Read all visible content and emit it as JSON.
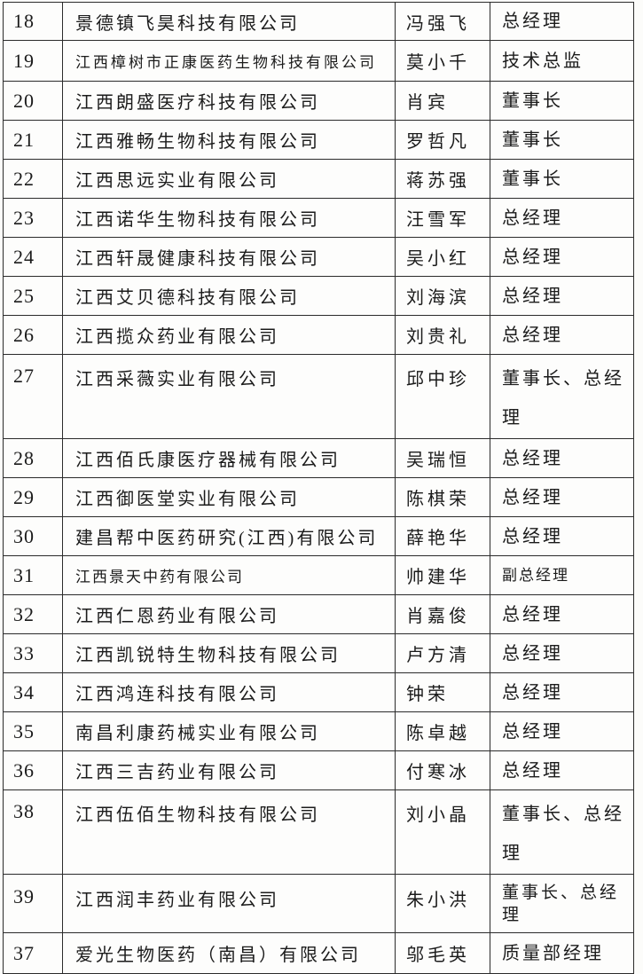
{
  "colors": {
    "paper": "#fdfdfc",
    "ink": "#1b1b1b",
    "grid_line": "#2b2b2b"
  },
  "table": {
    "rows": [
      {
        "num": "18",
        "company": "景德镇飞昊科技有限公司",
        "person": "冯强飞",
        "title": "总经理"
      },
      {
        "num": "19",
        "company": "江西樟树市正康医药生物科技有限公司",
        "person": "莫小千",
        "title": "技术总监"
      },
      {
        "num": "20",
        "company": "江西朗盛医疗科技有限公司",
        "person": "肖宾",
        "title": "董事长"
      },
      {
        "num": "21",
        "company": "江西雅畅生物科技有限公司",
        "person": "罗哲凡",
        "title": "董事长"
      },
      {
        "num": "22",
        "company": "江西思远实业有限公司",
        "person": "蒋苏强",
        "title": "董事长"
      },
      {
        "num": "23",
        "company": "江西诺华生物科技有限公司",
        "person": "汪雪军",
        "title": "总经理"
      },
      {
        "num": "24",
        "company": "江西轩晟健康科技有限公司",
        "person": "吴小红",
        "title": "总经理"
      },
      {
        "num": "25",
        "company": "江西艾贝德科技有限公司",
        "person": "刘海滨",
        "title": "总经理"
      },
      {
        "num": "26",
        "company": "江西揽众药业有限公司",
        "person": "刘贵礼",
        "title": "总经理"
      },
      {
        "num": "27",
        "company": "江西采薇实业有限公司",
        "person": "邱中珍",
        "title": "董事长、总经理"
      },
      {
        "num": "28",
        "company": "江西佰氏康医疗器械有限公司",
        "person": "吴瑞恒",
        "title": "总经理"
      },
      {
        "num": "29",
        "company": "江西御医堂实业有限公司",
        "person": "陈棋荣",
        "title": "总经理"
      },
      {
        "num": "30",
        "company": "建昌帮中医药研究(江西)有限公司",
        "person": "薛艳华",
        "title": "总经理"
      },
      {
        "num": "31",
        "company": "江西景天中药有限公司",
        "person": "帅建华",
        "title": "副总经理"
      },
      {
        "num": "32",
        "company": "江西仁恩药业有限公司",
        "person": "肖嘉俊",
        "title": "总经理"
      },
      {
        "num": "33",
        "company": "江西凯锐特生物科技有限公司",
        "person": "卢方清",
        "title": "总经理"
      },
      {
        "num": "34",
        "company": "江西鸿连科技有限公司",
        "person": "钟荣",
        "title": "总经理"
      },
      {
        "num": "35",
        "company": "南昌利康药械实业有限公司",
        "person": "陈卓越",
        "title": "总经理"
      },
      {
        "num": "36",
        "company": "江西三吉药业有限公司",
        "person": "付寒冰",
        "title": "总经理"
      },
      {
        "num": "38",
        "company": "江西伍佰生物科技有限公司",
        "person": "刘小晶",
        "title": "董事长、总经理"
      },
      {
        "num": "39",
        "company": "江西润丰药业有限公司",
        "person": "朱小洪",
        "title": "董事长、总经理"
      },
      {
        "num": "37",
        "company": "爱光生物医药（南昌）有限公司",
        "person": "邬毛英",
        "title": "质量部经理"
      }
    ]
  }
}
